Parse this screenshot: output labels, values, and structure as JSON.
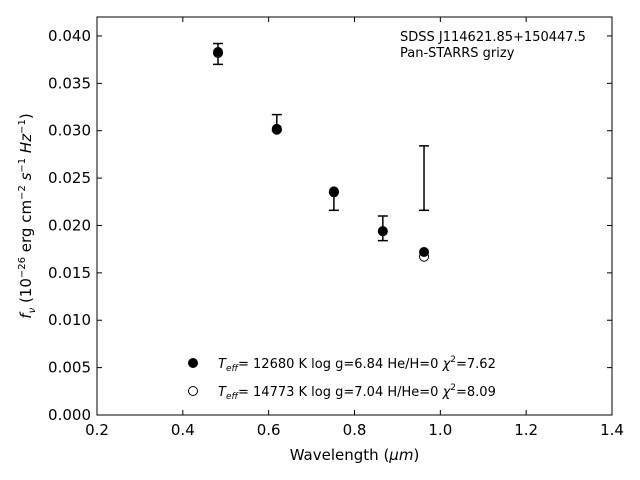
{
  "chart_data": {
    "type": "scatter",
    "xlabel_text": "Wavelength (",
    "xlabel_unit": "μm",
    "xlabel_close": ")",
    "ylabel_prefix": "f",
    "ylabel_sub": "ν",
    "ylabel_text": " (10",
    "ylabel_exp": "−26",
    "ylabel_rest": " erg cm",
    "ylabel_exp2": "−2",
    "ylabel_rest2": " s",
    "ylabel_exp3": "−1",
    "ylabel_rest3": " Hz",
    "ylabel_exp4": "−1",
    "ylabel_close": ")",
    "xlim": [
      0.2,
      1.4
    ],
    "ylim": [
      0.0,
      0.042
    ],
    "xticks": [
      "0.2",
      "0.4",
      "0.6",
      "0.8",
      "1.0",
      "1.2",
      "1.4"
    ],
    "yticks": [
      "0.000",
      "0.005",
      "0.010",
      "0.015",
      "0.020",
      "0.025",
      "0.030",
      "0.035",
      "0.040"
    ],
    "annotations": [
      "SDSS J114621.85+150447.5",
      "Pan-STARRS grizy"
    ],
    "observed": [
      {
        "x": 0.482,
        "y": 0.0381,
        "err_low": 0.037,
        "err_high": 0.0392
      },
      {
        "x": 0.619,
        "y": 0.0301,
        "err_low": 0.03,
        "err_high": 0.0317
      },
      {
        "x": 0.752,
        "y": 0.0233,
        "err_low": 0.0216,
        "err_high": 0.0235
      },
      {
        "x": 0.866,
        "y": 0.0197,
        "err_low": 0.0184,
        "err_high": 0.021
      },
      {
        "x": 0.962,
        "y": 0.025,
        "err_low": 0.0216,
        "err_high": 0.0284
      }
    ],
    "series": [
      {
        "marker": "filled",
        "legend_teff": "T",
        "legend_sub": "eff",
        "legend_rest": "= 12680 K  log g=6.84  He/H=0  ",
        "legend_chi": "χ",
        "legend_exp": "2",
        "legend_val": "=7.62",
        "x": [
          0.482,
          0.619,
          0.752,
          0.866,
          0.962
        ],
        "y": [
          0.0383,
          0.0302,
          0.0236,
          0.0194,
          0.0172
        ]
      },
      {
        "marker": "open",
        "legend_teff": "T",
        "legend_sub": "eff",
        "legend_rest": "= 14773 K  log g=7.04  H/He=0  ",
        "legend_chi": "χ",
        "legend_exp": "2",
        "legend_val": "=8.09",
        "x": [
          0.482,
          0.619,
          0.752,
          0.866,
          0.962
        ],
        "y": [
          0.0382,
          0.0301,
          0.0235,
          0.0194,
          0.0167
        ]
      }
    ]
  }
}
